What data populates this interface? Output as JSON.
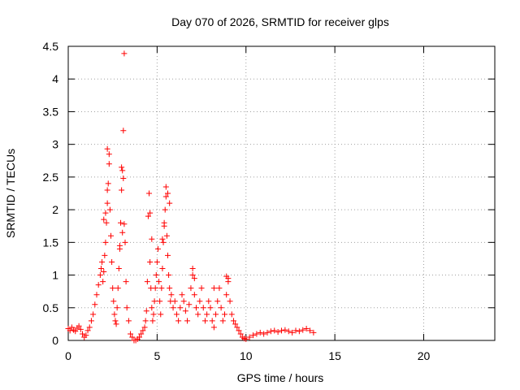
{
  "chart_data": {
    "type": "scatter",
    "title": "Day 070 of 2026, SRMTID for receiver glps",
    "xlabel": "GPS time / hours",
    "ylabel": "SRMTID / TECUs",
    "xlim": [
      0,
      24
    ],
    "ylim": [
      0,
      4.5
    ],
    "xticks": [
      0,
      5,
      10,
      15,
      20
    ],
    "yticks": [
      0,
      0.5,
      1,
      1.5,
      2,
      2.5,
      3,
      3.5,
      4,
      4.5
    ],
    "xtick_labels": [
      "0",
      "5",
      "10",
      "15",
      "20"
    ],
    "ytick_labels": [
      "0",
      "0.5",
      "1",
      "1.5",
      "2",
      "2.5",
      "3",
      "3.5",
      "4",
      "4.5"
    ],
    "grid": true,
    "marker": "+",
    "color": "#ff0000",
    "series": [
      {
        "name": "glps",
        "x": [
          0.0,
          0.1,
          0.2,
          0.3,
          0.4,
          0.5,
          0.6,
          0.7,
          0.8,
          0.9,
          1.0,
          1.1,
          1.2,
          1.3,
          1.4,
          1.5,
          1.6,
          1.7,
          1.8,
          1.85,
          1.9,
          1.95,
          2.0,
          2.05,
          2.1,
          2.15,
          2.2,
          2.25,
          2.3,
          2.35,
          2.4,
          2.45,
          2.5,
          2.55,
          2.6,
          2.65,
          2.7,
          2.75,
          2.8,
          2.85,
          2.9,
          2.95,
          3.0,
          3.05,
          3.1,
          3.15,
          3.2,
          3.25,
          3.3,
          3.4,
          3.5,
          3.6,
          3.7,
          3.8,
          3.9,
          4.0,
          4.1,
          4.2,
          4.3,
          4.35,
          4.4,
          4.45,
          4.5,
          4.55,
          4.6,
          4.65,
          4.7,
          4.75,
          4.8,
          4.85,
          4.9,
          4.95,
          5.0,
          5.05,
          5.1,
          5.15,
          5.2,
          5.25,
          5.3,
          5.35,
          5.4,
          5.45,
          5.5,
          5.55,
          5.6,
          5.65,
          5.7,
          5.75,
          5.8,
          5.9,
          6.0,
          6.1,
          6.2,
          6.3,
          6.4,
          6.5,
          6.6,
          6.7,
          6.8,
          6.9,
          7.0,
          7.1,
          7.2,
          7.3,
          7.4,
          7.5,
          7.6,
          7.7,
          7.8,
          7.9,
          8.0,
          8.1,
          8.2,
          8.3,
          8.4,
          8.5,
          8.6,
          8.7,
          8.8,
          8.9,
          9.0,
          9.1,
          9.2,
          9.3,
          9.4,
          9.5,
          9.6,
          9.7,
          9.8,
          9.9,
          10.0,
          10.2,
          10.4,
          10.6,
          10.8,
          11.0,
          11.2,
          11.4,
          11.6,
          11.8,
          12.0,
          12.2,
          12.4,
          12.6,
          12.8,
          13.0,
          13.2,
          13.4,
          13.6,
          13.8,
          2.2,
          2.3,
          3.0,
          3.1,
          3.15,
          5.5,
          5.6,
          5.7,
          4.6,
          4.7,
          8.9,
          9.0,
          2.0,
          2.1,
          2.2,
          2.9,
          3.05,
          5.3,
          5.4,
          7.0,
          7.1,
          8.2
        ],
        "y": [
          0.18,
          0.15,
          0.2,
          0.16,
          0.14,
          0.19,
          0.22,
          0.17,
          0.1,
          0.05,
          0.08,
          0.15,
          0.2,
          0.3,
          0.4,
          0.55,
          0.7,
          0.85,
          1.0,
          1.1,
          1.2,
          0.9,
          1.05,
          1.3,
          1.5,
          1.8,
          2.1,
          2.4,
          2.7,
          2.0,
          1.6,
          1.2,
          0.8,
          0.6,
          0.4,
          0.3,
          0.25,
          0.5,
          0.8,
          1.1,
          1.4,
          1.8,
          2.3,
          2.6,
          3.21,
          4.39,
          1.5,
          0.9,
          0.5,
          0.3,
          0.1,
          0.05,
          0.0,
          0.0,
          0.02,
          0.05,
          0.1,
          0.15,
          0.2,
          0.3,
          0.45,
          0.9,
          1.9,
          2.25,
          1.2,
          0.8,
          0.5,
          0.3,
          0.4,
          0.6,
          0.8,
          1.0,
          1.2,
          1.4,
          0.9,
          0.6,
          0.4,
          0.8,
          1.1,
          1.5,
          1.8,
          2.0,
          2.2,
          1.6,
          1.3,
          1.0,
          0.8,
          0.6,
          0.7,
          0.5,
          0.6,
          0.4,
          0.3,
          0.5,
          0.7,
          0.6,
          0.45,
          0.3,
          0.55,
          0.8,
          1.0,
          0.7,
          0.5,
          0.4,
          0.6,
          0.8,
          0.5,
          0.3,
          0.4,
          0.6,
          0.5,
          0.3,
          0.2,
          0.4,
          0.6,
          0.8,
          0.5,
          0.3,
          0.4,
          0.7,
          0.95,
          0.6,
          0.4,
          0.3,
          0.25,
          0.2,
          0.15,
          0.1,
          0.05,
          0.03,
          0.02,
          0.05,
          0.08,
          0.1,
          0.12,
          0.1,
          0.12,
          0.14,
          0.15,
          0.13,
          0.15,
          0.16,
          0.14,
          0.12,
          0.15,
          0.14,
          0.16,
          0.18,
          0.15,
          0.12,
          2.93,
          2.85,
          2.65,
          2.48,
          1.78,
          2.35,
          2.25,
          2.1,
          1.95,
          1.55,
          0.98,
          0.9,
          1.85,
          1.95,
          2.3,
          1.45,
          1.65,
          1.55,
          1.75,
          1.1,
          0.95,
          0.8
        ]
      }
    ]
  }
}
